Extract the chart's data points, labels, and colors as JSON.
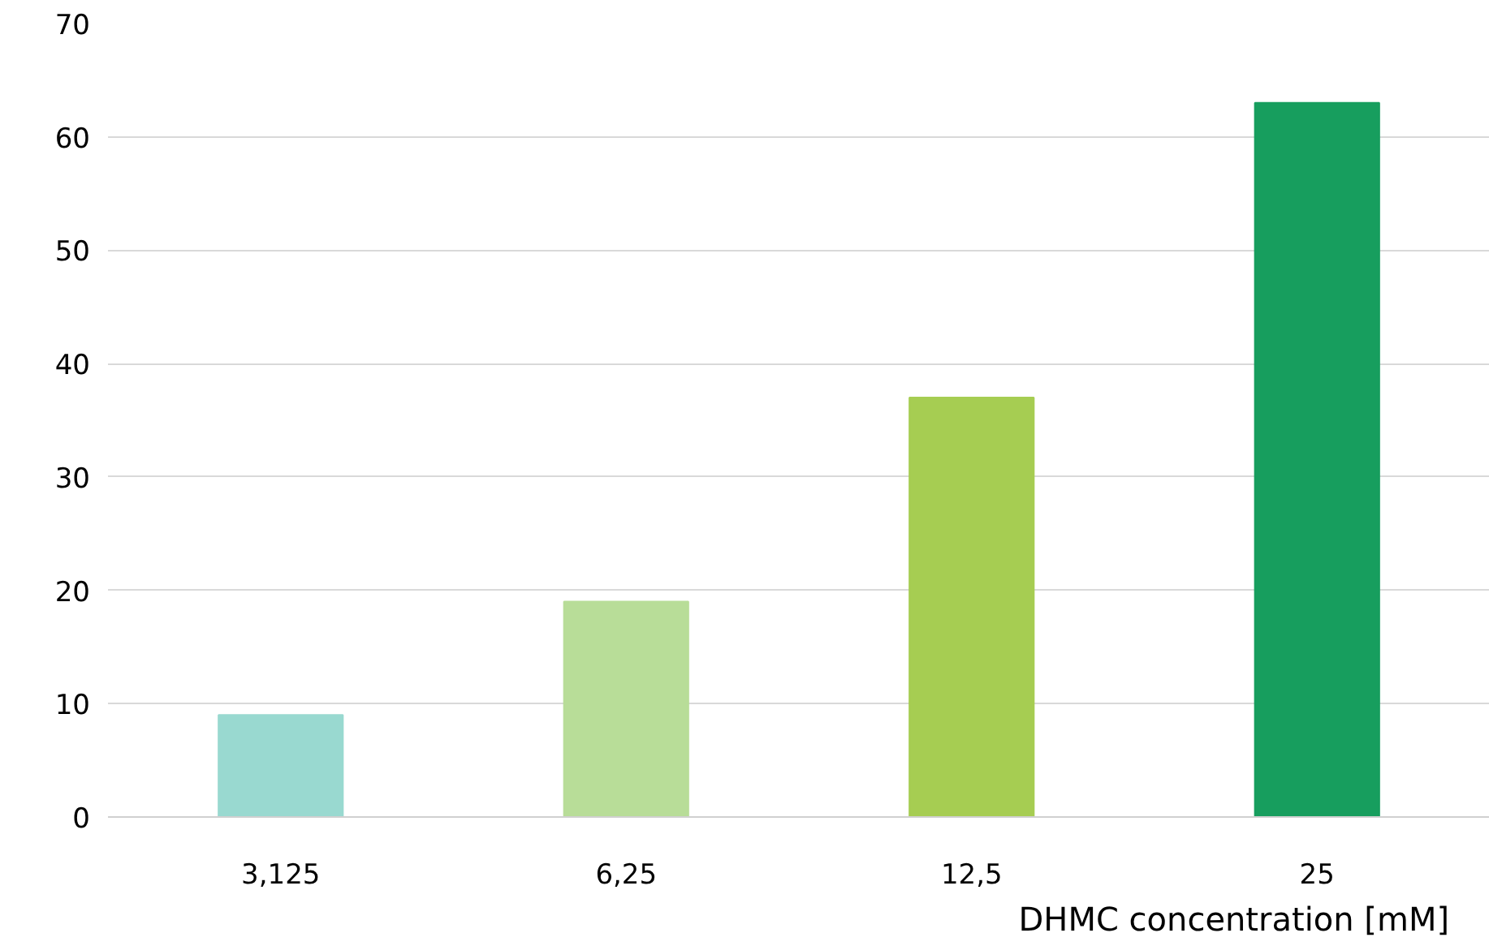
{
  "chart_data": {
    "type": "bar",
    "xlabel": "DHMC concentration [mM]",
    "categories": [
      "3,125",
      "6,25",
      "12,5",
      "25"
    ],
    "values": [
      9,
      19,
      37,
      63
    ],
    "colors": [
      "#99d9d0",
      "#b8dd98",
      "#a6cd52",
      "#179e5e"
    ],
    "ylim": [
      0,
      70
    ],
    "yticks": [
      0,
      10,
      20,
      30,
      40,
      50,
      60,
      70
    ],
    "grid": "y"
  }
}
